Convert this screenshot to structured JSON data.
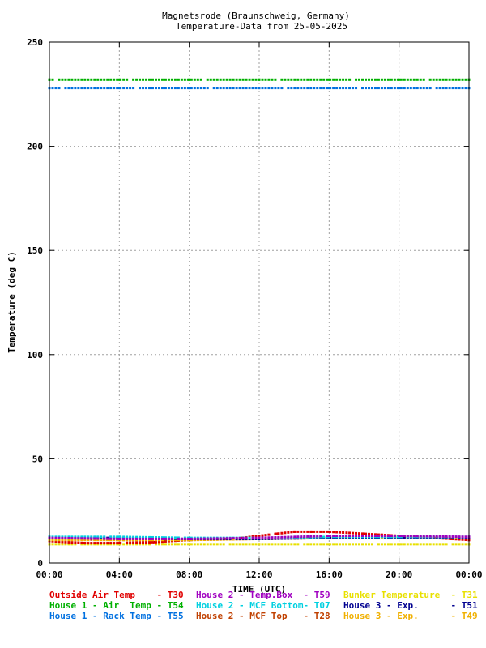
{
  "chart_data": {
    "type": "scatter",
    "title": "Magnetsrode (Braunschweig, Germany)",
    "subtitle": "Temperature-Data from 25-05-2025",
    "xlabel": "TIME (UTC)",
    "ylabel": "Temperature (deg C)",
    "xlim": [
      0,
      24
    ],
    "ylim": [
      0,
      250
    ],
    "x_ticks": [
      0,
      4,
      8,
      12,
      16,
      20,
      24
    ],
    "x_tick_labels": [
      "00:00",
      "04:00",
      "08:00",
      "12:00",
      "16:00",
      "20:00",
      "00:00"
    ],
    "y_ticks": [
      0,
      50,
      100,
      150,
      200,
      250
    ],
    "y_tick_labels": [
      "0",
      "50",
      "100",
      "150",
      "200",
      "250"
    ],
    "grid": true,
    "legend_placement": "bottom",
    "series": [
      {
        "name": "Outside Air Temp    - T30",
        "color": "#e00000",
        "x": [
          0,
          2,
          4,
          6,
          8,
          10,
          11,
          12,
          13,
          14,
          15,
          16,
          17,
          18,
          19,
          20,
          21,
          22,
          23,
          24
        ],
        "y": [
          10.5,
          9.5,
          9.5,
          10,
          11,
          11.5,
          12,
          13,
          14,
          15,
          15,
          15,
          14.5,
          14,
          13.5,
          13,
          12.5,
          12,
          11.5,
          11
        ]
      },
      {
        "name": "House 2 - Temp.Box  - T59",
        "color": "#a000c0",
        "x": [
          0,
          4,
          8,
          12,
          16,
          20,
          24
        ],
        "y": [
          12,
          11.5,
          11.5,
          12,
          13,
          13,
          12.5
        ]
      },
      {
        "name": "Bunker Temperature  - T31",
        "color": "#e8e000",
        "x": [
          0,
          4,
          8,
          12,
          16,
          20,
          24
        ],
        "y": [
          9,
          9,
          9,
          9,
          9,
          9,
          9
        ]
      },
      {
        "name": "House 1 - Air  Temp - T54",
        "color": "#00b000",
        "x": [
          0,
          4,
          8,
          12,
          16,
          20,
          24
        ],
        "y": [
          232,
          232,
          232,
          232,
          232,
          232,
          232
        ]
      },
      {
        "name": "House 2 - MCF Bottom- T07",
        "color": "#00d0e0",
        "x": [
          0,
          4,
          8,
          12,
          16,
          20,
          24
        ],
        "y": [
          12.5,
          12.5,
          12,
          12,
          12.5,
          12.5,
          12.5
        ]
      },
      {
        "name": "House 3 - Exp.      - T51",
        "color": "#000090",
        "x": [
          0,
          4,
          8,
          12,
          16,
          20,
          24
        ],
        "y": [
          12,
          12,
          11.5,
          11.5,
          12,
          12,
          12
        ]
      },
      {
        "name": "House 1 - Rack Temp - T55",
        "color": "#0070e0",
        "x": [
          0,
          4,
          8,
          12,
          16,
          20,
          24
        ],
        "y": [
          228,
          228,
          228,
          228,
          228,
          228,
          228
        ]
      },
      {
        "name": "House 2 - MCF Top   - T28",
        "color": "#c04000",
        "x": [
          0,
          4,
          8,
          12,
          16,
          20,
          24
        ],
        "y": [
          11.5,
          11,
          11,
          11.5,
          12,
          12.5,
          12
        ]
      },
      {
        "name": "House 3 - Exp.      - T49",
        "color": "#f0b000",
        "x": [
          0,
          4,
          8,
          12,
          16,
          20,
          24
        ],
        "y": [
          11,
          11,
          11,
          11.5,
          12,
          12,
          12
        ]
      }
    ]
  }
}
